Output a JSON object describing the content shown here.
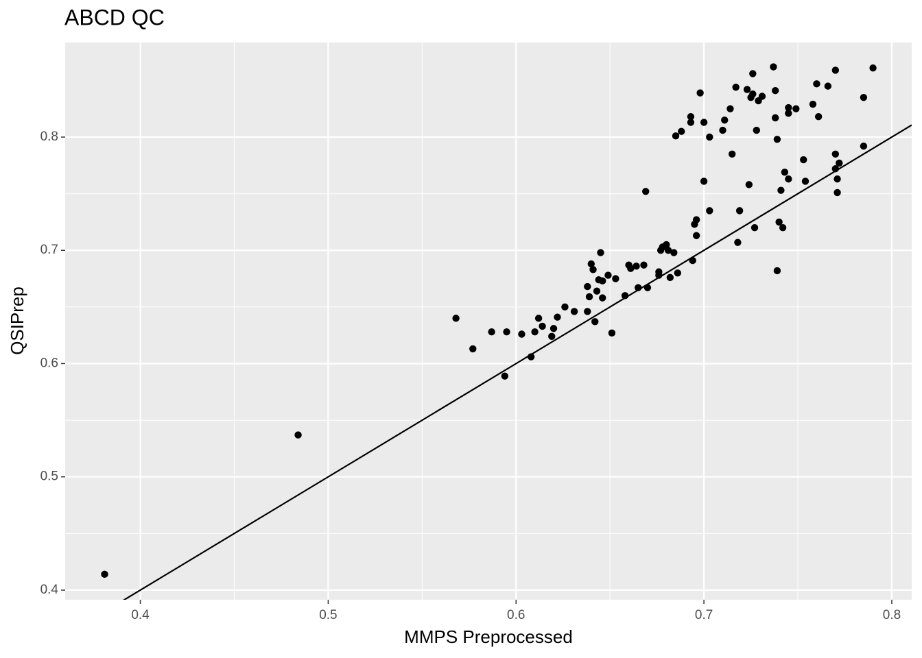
{
  "chart_data": {
    "type": "scatter",
    "title": "ABCD QC",
    "x_label": "MMPS Preprocessed",
    "y_label": "QSIPrep",
    "color": "#000000",
    "xlim": [
      0.36,
      0.8106
    ],
    "ylim": [
      0.3915,
      0.8835
    ],
    "xticks": [
      0.4,
      0.5,
      0.6,
      0.7,
      0.8
    ],
    "yticks": [
      0.4,
      0.5,
      0.6,
      0.7,
      0.8
    ],
    "grid": true,
    "reference_line": {
      "slope": 1,
      "intercept": 0
    },
    "x": [
      0.381,
      0.484,
      0.568,
      0.577,
      0.587,
      0.595,
      0.594,
      0.603,
      0.608,
      0.61,
      0.612,
      0.614,
      0.619,
      0.62,
      0.622,
      0.626,
      0.631,
      0.638,
      0.638,
      0.639,
      0.64,
      0.641,
      0.642,
      0.643,
      0.644,
      0.645,
      0.646,
      0.646,
      0.649,
      0.651,
      0.653,
      0.658,
      0.66,
      0.661,
      0.664,
      0.665,
      0.668,
      0.669,
      0.67,
      0.676,
      0.676,
      0.677,
      0.678,
      0.68,
      0.681,
      0.682,
      0.684,
      0.685,
      0.686,
      0.688,
      0.693,
      0.693,
      0.694,
      0.695,
      0.696,
      0.696,
      0.698,
      0.7,
      0.7,
      0.703,
      0.703,
      0.71,
      0.711,
      0.714,
      0.715,
      0.717,
      0.718,
      0.719,
      0.723,
      0.724,
      0.725,
      0.726,
      0.726,
      0.727,
      0.728,
      0.729,
      0.731,
      0.737,
      0.738,
      0.738,
      0.739,
      0.739,
      0.74,
      0.741,
      0.742,
      0.743,
      0.745,
      0.745,
      0.745,
      0.749,
      0.753,
      0.754,
      0.758,
      0.76,
      0.761,
      0.766,
      0.77,
      0.77,
      0.77,
      0.771,
      0.771,
      0.772,
      0.785,
      0.785,
      0.79
    ],
    "y": [
      0.414,
      0.537,
      0.64,
      0.613,
      0.628,
      0.628,
      0.589,
      0.626,
      0.606,
      0.628,
      0.64,
      0.633,
      0.624,
      0.631,
      0.641,
      0.65,
      0.646,
      0.668,
      0.646,
      0.659,
      0.688,
      0.683,
      0.637,
      0.664,
      0.674,
      0.698,
      0.673,
      0.658,
      0.678,
      0.627,
      0.675,
      0.66,
      0.687,
      0.684,
      0.686,
      0.667,
      0.687,
      0.752,
      0.667,
      0.681,
      0.678,
      0.7,
      0.703,
      0.705,
      0.7,
      0.676,
      0.698,
      0.801,
      0.68,
      0.805,
      0.818,
      0.813,
      0.691,
      0.723,
      0.713,
      0.727,
      0.839,
      0.761,
      0.813,
      0.8,
      0.735,
      0.806,
      0.815,
      0.825,
      0.785,
      0.844,
      0.707,
      0.735,
      0.842,
      0.758,
      0.835,
      0.856,
      0.838,
      0.72,
      0.806,
      0.832,
      0.836,
      0.862,
      0.841,
      0.817,
      0.682,
      0.798,
      0.725,
      0.753,
      0.72,
      0.769,
      0.763,
      0.821,
      0.826,
      0.825,
      0.78,
      0.761,
      0.829,
      0.847,
      0.818,
      0.845,
      0.859,
      0.785,
      0.772,
      0.763,
      0.751,
      0.777,
      0.792,
      0.835,
      0.861
    ]
  }
}
